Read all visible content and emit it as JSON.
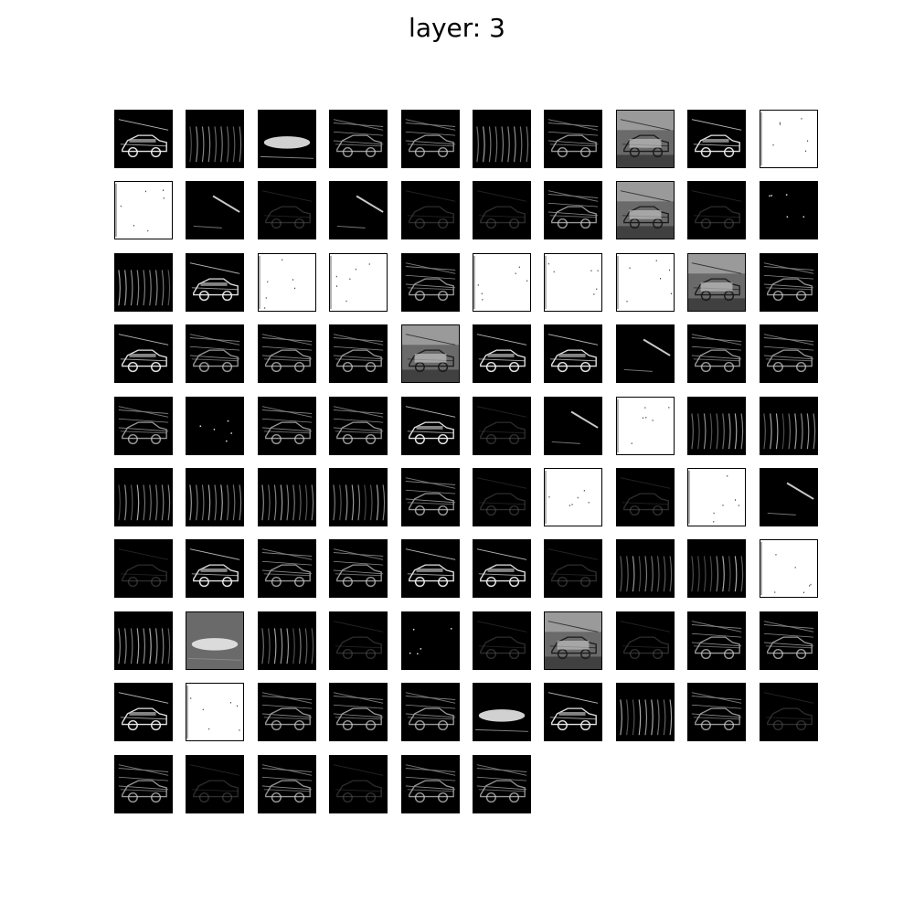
{
  "figure": {
    "title": "layer: 3",
    "columns": 10,
    "tile_count": 96,
    "colormap": [
      "#000000",
      "#ffffff"
    ],
    "tiles": [
      {
        "tone": "dark",
        "motif": "car-bright"
      },
      {
        "tone": "dark",
        "motif": "stripes"
      },
      {
        "tone": "dark",
        "motif": "glow-bar"
      },
      {
        "tone": "dark",
        "motif": "car-lines"
      },
      {
        "tone": "dark",
        "motif": "car-lines"
      },
      {
        "tone": "dark",
        "motif": "stripes"
      },
      {
        "tone": "dark",
        "motif": "car-lines"
      },
      {
        "tone": "gray",
        "motif": "car-photo"
      },
      {
        "tone": "dark",
        "motif": "car-bright"
      },
      {
        "tone": "white",
        "motif": "specks"
      },
      {
        "tone": "white",
        "motif": "specks"
      },
      {
        "tone": "dark",
        "motif": "streak"
      },
      {
        "tone": "dark",
        "motif": "faint"
      },
      {
        "tone": "dark",
        "motif": "streak"
      },
      {
        "tone": "dark",
        "motif": "faint"
      },
      {
        "tone": "dark",
        "motif": "faint"
      },
      {
        "tone": "dark",
        "motif": "car-lines"
      },
      {
        "tone": "gray",
        "motif": "car-photo"
      },
      {
        "tone": "dark",
        "motif": "faint"
      },
      {
        "tone": "dark",
        "motif": "dots"
      },
      {
        "tone": "dark",
        "motif": "stripes"
      },
      {
        "tone": "dark",
        "motif": "car-bright"
      },
      {
        "tone": "white",
        "motif": "specks"
      },
      {
        "tone": "white",
        "motif": "specks"
      },
      {
        "tone": "dark",
        "motif": "car-lines"
      },
      {
        "tone": "white",
        "motif": "specks"
      },
      {
        "tone": "white",
        "motif": "specks"
      },
      {
        "tone": "white",
        "motif": "specks"
      },
      {
        "tone": "gray",
        "motif": "car-photo"
      },
      {
        "tone": "dark",
        "motif": "car-lines"
      },
      {
        "tone": "dark",
        "motif": "car-bright"
      },
      {
        "tone": "dark",
        "motif": "car-lines"
      },
      {
        "tone": "dark",
        "motif": "car-lines"
      },
      {
        "tone": "dark",
        "motif": "car-lines"
      },
      {
        "tone": "gray",
        "motif": "car-photo"
      },
      {
        "tone": "dark",
        "motif": "car-bright"
      },
      {
        "tone": "dark",
        "motif": "car-bright"
      },
      {
        "tone": "dark",
        "motif": "streak"
      },
      {
        "tone": "dark",
        "motif": "car-lines"
      },
      {
        "tone": "dark",
        "motif": "car-lines"
      },
      {
        "tone": "dark",
        "motif": "car-lines"
      },
      {
        "tone": "dark",
        "motif": "dots"
      },
      {
        "tone": "dark",
        "motif": "car-lines"
      },
      {
        "tone": "dark",
        "motif": "car-lines"
      },
      {
        "tone": "dark",
        "motif": "car-bright"
      },
      {
        "tone": "dark",
        "motif": "faint"
      },
      {
        "tone": "dark",
        "motif": "streak"
      },
      {
        "tone": "white",
        "motif": "specks"
      },
      {
        "tone": "dark",
        "motif": "stripes"
      },
      {
        "tone": "dark",
        "motif": "stripes"
      },
      {
        "tone": "dark",
        "motif": "stripes"
      },
      {
        "tone": "dark",
        "motif": "stripes"
      },
      {
        "tone": "dark",
        "motif": "stripes"
      },
      {
        "tone": "dark",
        "motif": "stripes"
      },
      {
        "tone": "dark",
        "motif": "car-lines"
      },
      {
        "tone": "dark",
        "motif": "faint"
      },
      {
        "tone": "white",
        "motif": "specks"
      },
      {
        "tone": "dark",
        "motif": "faint"
      },
      {
        "tone": "white",
        "motif": "specks"
      },
      {
        "tone": "dark",
        "motif": "streak"
      },
      {
        "tone": "dark",
        "motif": "faint"
      },
      {
        "tone": "dark",
        "motif": "car-bright"
      },
      {
        "tone": "dark",
        "motif": "car-lines"
      },
      {
        "tone": "dark",
        "motif": "car-lines"
      },
      {
        "tone": "dark",
        "motif": "car-bright"
      },
      {
        "tone": "dark",
        "motif": "car-bright"
      },
      {
        "tone": "dark",
        "motif": "faint"
      },
      {
        "tone": "dark",
        "motif": "stripes"
      },
      {
        "tone": "dark",
        "motif": "stripes"
      },
      {
        "tone": "white",
        "motif": "specks"
      },
      {
        "tone": "dark",
        "motif": "stripes"
      },
      {
        "tone": "gray",
        "motif": "glow-bar"
      },
      {
        "tone": "dark",
        "motif": "stripes"
      },
      {
        "tone": "dark",
        "motif": "faint"
      },
      {
        "tone": "dark",
        "motif": "dots"
      },
      {
        "tone": "dark",
        "motif": "faint"
      },
      {
        "tone": "gray",
        "motif": "car-photo"
      },
      {
        "tone": "dark",
        "motif": "faint"
      },
      {
        "tone": "dark",
        "motif": "car-lines"
      },
      {
        "tone": "dark",
        "motif": "car-lines"
      },
      {
        "tone": "dark",
        "motif": "car-bright"
      },
      {
        "tone": "white",
        "motif": "specks"
      },
      {
        "tone": "dark",
        "motif": "car-lines"
      },
      {
        "tone": "dark",
        "motif": "car-lines"
      },
      {
        "tone": "dark",
        "motif": "car-lines"
      },
      {
        "tone": "dark",
        "motif": "glow-bar"
      },
      {
        "tone": "dark",
        "motif": "car-bright"
      },
      {
        "tone": "dark",
        "motif": "stripes"
      },
      {
        "tone": "dark",
        "motif": "car-lines"
      },
      {
        "tone": "dark",
        "motif": "faint"
      },
      {
        "tone": "dark",
        "motif": "car-lines"
      },
      {
        "tone": "dark",
        "motif": "faint"
      },
      {
        "tone": "dark",
        "motif": "car-lines"
      },
      {
        "tone": "dark",
        "motif": "faint"
      },
      {
        "tone": "dark",
        "motif": "car-lines"
      },
      {
        "tone": "dark",
        "motif": "car-lines"
      }
    ]
  }
}
